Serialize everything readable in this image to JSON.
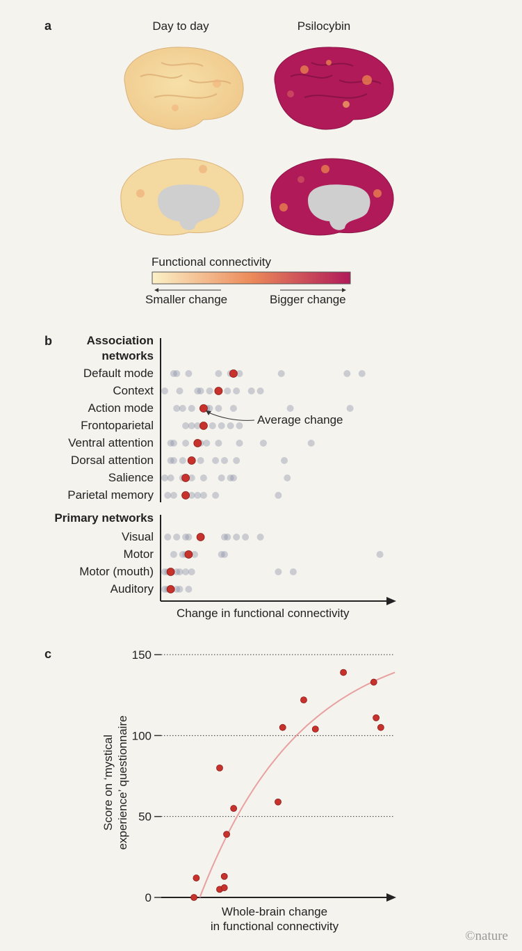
{
  "panel_a": {
    "letter": "a",
    "col1": "Day to day",
    "col2": "Psilocybin",
    "colorbar_title": "Functional connectivity",
    "left_label": "Smaller change",
    "right_label": "Bigger change",
    "colors": {
      "low": "#fbf1c7",
      "mid": "#ec8a5a",
      "high": "#b01a59"
    }
  },
  "panel_b": {
    "letter": "b",
    "group1": "Association networks",
    "group2": "Primary networks",
    "xlabel": "Change in functional connectivity",
    "annotation": "Average change"
  },
  "panel_c": {
    "letter": "c"
  },
  "chart_data": [
    {
      "type": "scatter",
      "xlabel": "Change in functional connectivity",
      "groups": [
        {
          "label": "Default mode",
          "avg": 0.23,
          "points": [
            0.03,
            0.04,
            0.08,
            0.18,
            0.22,
            0.25,
            0.39,
            0.61,
            0.66
          ]
        },
        {
          "label": "Context",
          "avg": 0.18,
          "points": [
            0.0,
            0.05,
            0.11,
            0.12,
            0.15,
            0.21,
            0.24,
            0.29,
            0.32
          ]
        },
        {
          "label": "Action mode",
          "avg": 0.13,
          "points": [
            0.04,
            0.06,
            0.09,
            0.14,
            0.15,
            0.18,
            0.23,
            0.42,
            0.62
          ]
        },
        {
          "label": "Frontoparietal",
          "avg": 0.13,
          "points": [
            0.07,
            0.09,
            0.11,
            0.16,
            0.19,
            0.22,
            0.25
          ]
        },
        {
          "label": "Ventral attention",
          "avg": 0.11,
          "points": [
            0.02,
            0.03,
            0.07,
            0.12,
            0.14,
            0.18,
            0.25,
            0.33,
            0.49
          ]
        },
        {
          "label": "Dorsal attention",
          "avg": 0.09,
          "points": [
            0.02,
            0.03,
            0.06,
            0.12,
            0.17,
            0.2,
            0.24,
            0.4
          ]
        },
        {
          "label": "Salience",
          "avg": 0.07,
          "points": [
            0.0,
            0.02,
            0.06,
            0.09,
            0.13,
            0.19,
            0.22,
            0.23,
            0.41
          ]
        },
        {
          "label": "Parietal memory",
          "avg": 0.07,
          "points": [
            0.01,
            0.03,
            0.09,
            0.11,
            0.13,
            0.17,
            0.38
          ]
        }
      ],
      "groups2": [
        {
          "label": "Visual",
          "avg": 0.12,
          "points": [
            0.01,
            0.04,
            0.07,
            0.08,
            0.2,
            0.21,
            0.24,
            0.27,
            0.32
          ]
        },
        {
          "label": "Motor",
          "avg": 0.08,
          "points": [
            0.03,
            0.06,
            0.07,
            0.1,
            0.19,
            0.2,
            0.72
          ]
        },
        {
          "label": "Motor (mouth)",
          "avg": 0.02,
          "points": [
            0.0,
            0.01,
            0.04,
            0.05,
            0.07,
            0.09,
            0.38,
            0.43
          ]
        },
        {
          "label": "Auditory",
          "avg": 0.02,
          "points": [
            0.0,
            0.01,
            0.04,
            0.05,
            0.08
          ]
        }
      ]
    },
    {
      "type": "scatter",
      "xlabel": "Whole-brain change\nin functional connectivity",
      "ylabel": "Score on ‘mystical\nexperience’ questionnaire",
      "ylim": [
        0,
        150
      ],
      "yticks": [
        0,
        50,
        100,
        150
      ],
      "xlim": [
        0,
        1
      ],
      "points": [
        [
          0.14,
          0
        ],
        [
          0.15,
          12
        ],
        [
          0.25,
          5
        ],
        [
          0.27,
          6
        ],
        [
          0.27,
          13
        ],
        [
          0.25,
          80
        ],
        [
          0.28,
          39
        ],
        [
          0.31,
          55
        ],
        [
          0.5,
          59
        ],
        [
          0.52,
          105
        ],
        [
          0.61,
          122
        ],
        [
          0.66,
          104
        ],
        [
          0.78,
          139
        ],
        [
          0.91,
          133
        ],
        [
          0.92,
          111
        ],
        [
          0.94,
          105
        ]
      ],
      "fit_line": {
        "color": "#e8a0a0"
      }
    }
  ]
}
